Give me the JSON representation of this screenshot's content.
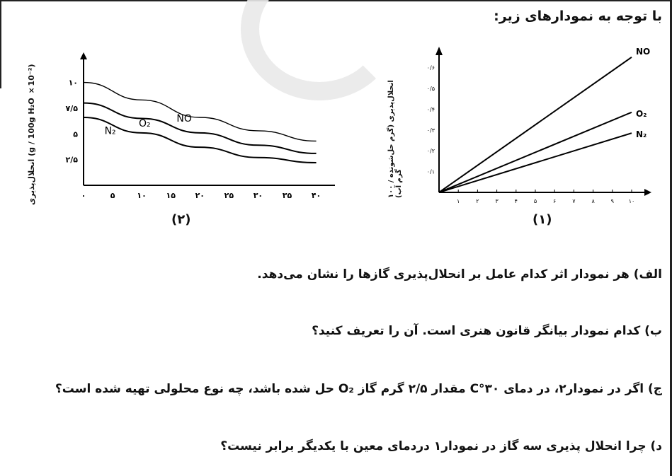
{
  "heading": "با توجه به نمودارهای زیر:",
  "chart_data": [
    {
      "type": "line",
      "caption": "(۲)",
      "ylabel": "انحلال‌پذیری (g / 100g H₂O ×10⁻²)",
      "x_ticks": [
        "۰",
        "۵",
        "۱۰",
        "۱۵",
        "۲۰",
        "۲۵",
        "۳۰",
        "۳۵",
        "۴۰"
      ],
      "y_ticks": [
        "۲/۵",
        "۵",
        "۷/۵",
        "۱۰"
      ],
      "x": [
        0,
        10,
        20,
        30,
        40
      ],
      "series": [
        {
          "name": "NO",
          "values": [
            10,
            8.3,
            6.6,
            5.3,
            4.3
          ]
        },
        {
          "name": "O₂",
          "values": [
            8,
            6.5,
            5.1,
            3.9,
            3.1
          ]
        },
        {
          "name": "N₂",
          "values": [
            6.6,
            5.1,
            3.7,
            2.7,
            2.2
          ]
        }
      ]
    },
    {
      "type": "line",
      "caption": "(۱)",
      "ylabel": "انحلال‌پذیری (گرم حل‌شونده / ۱۰۰ گرم آب)",
      "x_ticks": [
        "۱",
        "۲",
        "۳",
        "۴",
        "۵",
        "۶",
        "۷",
        "۸",
        "۹",
        "۱۰"
      ],
      "y_ticks": [
        "۰/۱",
        "۰/۲",
        "۰/۳",
        "۰/۴",
        "۰/۵",
        "۰/۶"
      ],
      "x": [
        0,
        10
      ],
      "series": [
        {
          "name": "NO",
          "values": [
            0,
            0.65
          ]
        },
        {
          "name": "O₂",
          "values": [
            0,
            0.385
          ]
        },
        {
          "name": "N₂",
          "values": [
            0,
            0.285
          ]
        }
      ]
    }
  ],
  "questions": [
    "الف) هر نمودار اثر کدام عامل بر انحلال‌پذیری گازها را نشان می‌دهد.",
    "ب) کدام نمودار بیانگر قانون هنری است. آن را تعریف کنید؟",
    "ج) اگر در نمودار۲، در دمای ۳۰°C مقدار ۲/۵ گرم گاز O₂ حل شده باشد، چه نوع محلولی تهیه شده است؟",
    "د) چرا انحلال پذیری سه گاز در نمودار۱ دردمای معین با یکدیگر برابر نیست؟"
  ]
}
